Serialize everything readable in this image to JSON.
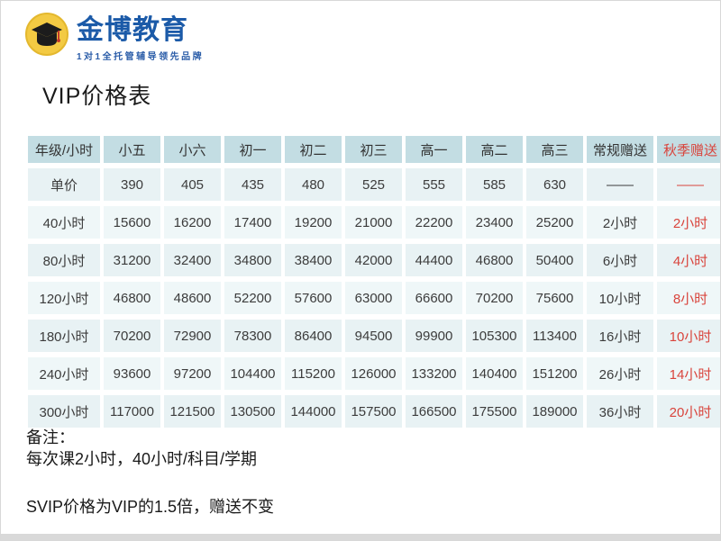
{
  "brand": {
    "name": "金博教育",
    "tagline": "1对1全托管辅导领先品牌"
  },
  "page": {
    "title": "VIP价格表"
  },
  "chart_data": {
    "type": "table",
    "title": "VIP价格表",
    "columns": [
      "年级/小时",
      "小五",
      "小六",
      "初一",
      "初二",
      "初三",
      "高一",
      "高二",
      "高三",
      "常规赠送",
      "秋季赠送"
    ],
    "rows": [
      {
        "label": "单价",
        "values": [
          "390",
          "405",
          "435",
          "480",
          "525",
          "555",
          "585",
          "630",
          "——",
          "——"
        ]
      },
      {
        "label": "40小时",
        "values": [
          "15600",
          "16200",
          "17400",
          "19200",
          "21000",
          "22200",
          "23400",
          "25200",
          "2小时",
          "2小时"
        ]
      },
      {
        "label": "80小时",
        "values": [
          "31200",
          "32400",
          "34800",
          "38400",
          "42000",
          "44400",
          "46800",
          "50400",
          "6小时",
          "4小时"
        ]
      },
      {
        "label": "120小时",
        "values": [
          "46800",
          "48600",
          "52200",
          "57600",
          "63000",
          "66600",
          "70200",
          "75600",
          "10小时",
          "8小时"
        ]
      },
      {
        "label": "180小时",
        "values": [
          "70200",
          "72900",
          "78300",
          "86400",
          "94500",
          "99900",
          "105300",
          "113400",
          "16小时",
          "10小时"
        ]
      },
      {
        "label": "240小时",
        "values": [
          "93600",
          "97200",
          "104400",
          "115200",
          "126000",
          "133200",
          "140400",
          "151200",
          "26小时",
          "14小时"
        ]
      },
      {
        "label": "300小时",
        "values": [
          "117000",
          "121500",
          "130500",
          "144000",
          "157500",
          "166500",
          "175500",
          "189000",
          "36小时",
          "20小时"
        ]
      }
    ]
  },
  "notes": {
    "label": "备注：",
    "line1": "每次课2小时，40小时/科目/学期",
    "line2": "SVIP价格为VIP的1.5倍，赠送不变"
  },
  "colors": {
    "header_bg": "#c3dde3",
    "row_bg": "#e8f2f4",
    "row_bg_alt": "#eff7f8",
    "accent_red": "#d9443c",
    "brand_blue": "#1b5aa8",
    "logo_yellow": "#f3ca43"
  }
}
